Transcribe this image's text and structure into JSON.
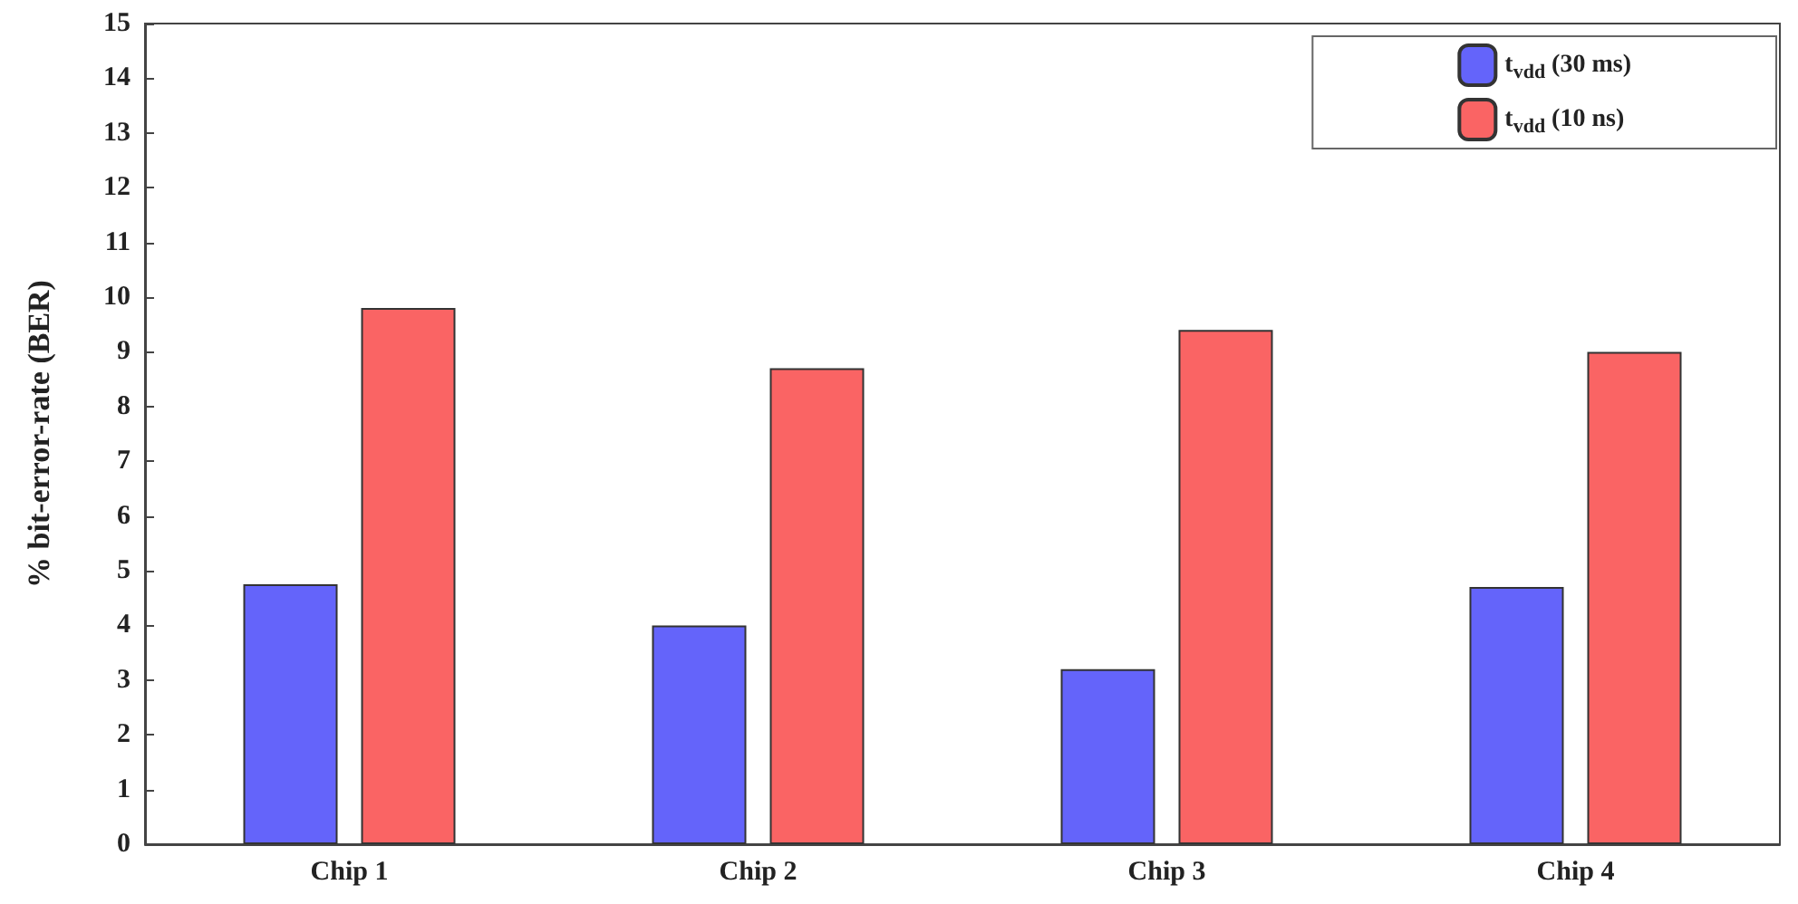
{
  "chart_data": {
    "type": "bar",
    "ylabel": "% bit-error-rate (BER)",
    "categories": [
      "Chip 1",
      "Chip 2",
      "Chip 3",
      "Chip 4"
    ],
    "series": [
      {
        "name": "t$_{vdd}$ (30 ms)",
        "color": "#6464fa",
        "values": [
          4.75,
          4.0,
          3.2,
          4.7
        ]
      },
      {
        "name": "t$_{vdd}$ (10 ns)",
        "color": "#fa6464",
        "values": [
          9.8,
          8.7,
          9.4,
          9.0
        ]
      }
    ],
    "ylim": [
      0,
      15
    ],
    "yticks": [
      0,
      1,
      2,
      3,
      4,
      5,
      6,
      7,
      8,
      9,
      10,
      11,
      12,
      13,
      14,
      15
    ],
    "grid": false,
    "legend": "top right"
  }
}
